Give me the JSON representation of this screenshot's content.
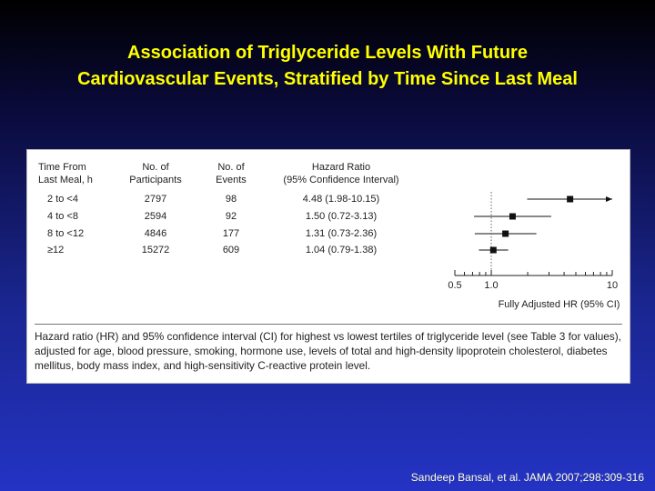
{
  "title_line1": "Association of Triglyceride Levels With Future",
  "title_line2": "Cardiovascular Events, Stratified by Time Since Last Meal",
  "table": {
    "headers": {
      "time": [
        "Time From",
        "Last Meal, h"
      ],
      "participants": [
        "No. of",
        "Participants"
      ],
      "events": [
        "No. of",
        "Events"
      ],
      "hr": [
        "Hazard Ratio",
        "(95% Confidence Interval)"
      ]
    },
    "rows": [
      {
        "time": "2 to <4",
        "participants": "2797",
        "events": "98",
        "hr": "4.48 (1.98-10.15)"
      },
      {
        "time": "4 to <8",
        "participants": "2594",
        "events": "92",
        "hr": "1.50 (0.72-3.13)"
      },
      {
        "time": "8 to <12",
        "participants": "4846",
        "events": "177",
        "hr": "1.31 (0.73-2.36)"
      },
      {
        "time": "≥12",
        "participants": "15272",
        "events": "609",
        "hr": "1.04 (0.79-1.38)"
      }
    ]
  },
  "chart_data": {
    "type": "forest",
    "categories": [
      "2 to <4",
      "4 to <8",
      "8 to <12",
      "≥12"
    ],
    "estimates": [
      4.48,
      1.5,
      1.31,
      1.04
    ],
    "ci_low": [
      1.98,
      0.72,
      0.73,
      0.79
    ],
    "ci_high": [
      10.15,
      3.13,
      2.36,
      1.38
    ],
    "ci_arrow": [
      true,
      false,
      false,
      false
    ],
    "x_scale": "log",
    "xlim": [
      0.5,
      10
    ],
    "xticks": [
      0.5,
      1.0,
      10
    ],
    "xtick_labels": [
      "0.5",
      "1.0",
      "10"
    ],
    "reference_line": 1.0,
    "xlabel": "Fully Adjusted HR (95% CI)"
  },
  "caption": "Hazard ratio (HR) and 95% confidence interval (CI) for highest vs lowest tertiles of triglyceride level (see Table 3 for values), adjusted for age, blood pressure, smoking, hormone use, levels of total and high-density lipoprotein cholesterol, diabetes mellitus, body mass index, and high-sensitivity C-reactive protein level.",
  "citation": "Sandeep Bansal, et al. JAMA 2007;298:309-316",
  "colors": {
    "title": "#ffff00",
    "citation": "#ffffcc",
    "marker": "#111111"
  }
}
